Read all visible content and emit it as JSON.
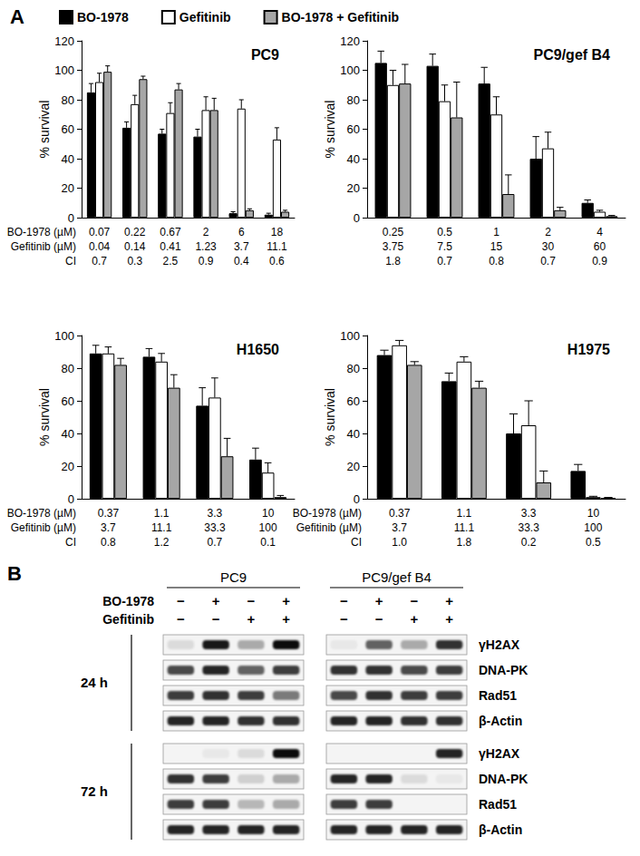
{
  "panel_a": {
    "label": "A"
  },
  "chart_data": [
    {
      "type": "bar",
      "title": "PC9",
      "y_label": "% survival",
      "ylim": [
        0,
        120
      ],
      "yticks": [
        0,
        20,
        40,
        60,
        80,
        100,
        120
      ],
      "grid": false,
      "legend": "top",
      "x_rows": [
        {
          "name": "BO-1978 (µM)",
          "values": [
            0.07,
            0.22,
            0.67,
            2,
            6,
            18
          ]
        },
        {
          "name": "Gefitinib (µM)",
          "values": [
            0.04,
            0.14,
            0.41,
            1.23,
            3.7,
            11.1
          ]
        },
        {
          "name": "CI",
          "values": [
            0.7,
            0.3,
            2.5,
            0.9,
            0.4,
            0.6
          ]
        }
      ],
      "series": [
        {
          "name": "BO-1978",
          "color": "#000000",
          "values": [
            85,
            61,
            57,
            55,
            3,
            2
          ],
          "errors": [
            6,
            4,
            3,
            5,
            1,
            1
          ]
        },
        {
          "name": "Gefitinib",
          "color": "#ffffff",
          "values": [
            92,
            77,
            71,
            73,
            74,
            53
          ],
          "errors": [
            6,
            6,
            7,
            9,
            6,
            8
          ]
        },
        {
          "name": "BO-1978 + Gefitinib",
          "color": "#a6a6a6",
          "values": [
            99,
            94,
            87,
            73,
            5,
            4
          ],
          "errors": [
            4,
            2,
            4,
            8,
            1,
            1
          ]
        }
      ]
    },
    {
      "type": "bar",
      "title": "PC9/gef B4",
      "y_label": "% survival",
      "ylim": [
        0,
        120
      ],
      "yticks": [
        0,
        20,
        40,
        60,
        80,
        100,
        120
      ],
      "grid": false,
      "x_rows": [
        {
          "values": [
            0.25,
            0.5,
            1,
            2,
            4
          ]
        },
        {
          "values": [
            3.75,
            7.5,
            15,
            30,
            60
          ]
        },
        {
          "values": [
            1.8,
            0.7,
            0.8,
            0.7,
            0.9
          ]
        }
      ],
      "series": [
        {
          "name": "BO-1978",
          "color": "#000000",
          "values": [
            105,
            103,
            91,
            40,
            10
          ],
          "errors": [
            8,
            8,
            11,
            15,
            2
          ]
        },
        {
          "name": "Gefitinib",
          "color": "#ffffff",
          "values": [
            90,
            79,
            70,
            47,
            4
          ],
          "errors": [
            10,
            11,
            12,
            11,
            1
          ]
        },
        {
          "name": "BO-1978 + Gefitinib",
          "color": "#a6a6a6",
          "values": [
            91,
            68,
            16,
            5,
            1
          ],
          "errors": [
            13,
            24,
            13,
            2,
            0.5
          ]
        }
      ]
    },
    {
      "type": "bar",
      "title": "H1650",
      "y_label": "% survival",
      "ylim": [
        0,
        100
      ],
      "yticks": [
        0,
        20,
        40,
        60,
        80,
        100
      ],
      "grid": false,
      "x_rows": [
        {
          "name": "BO-1978 (µM)",
          "values": [
            0.37,
            1.1,
            3.3,
            10
          ]
        },
        {
          "name": "Gefitinib (µM)",
          "values": [
            3.7,
            11.1,
            33.3,
            100
          ]
        },
        {
          "name": "CI",
          "values": [
            0.8,
            1.2,
            0.7,
            0.1
          ]
        }
      ],
      "series": [
        {
          "name": "BO-1978",
          "color": "#000000",
          "values": [
            89,
            87,
            57,
            24
          ],
          "errors": [
            5,
            5,
            11,
            7
          ]
        },
        {
          "name": "Gefitinib",
          "color": "#ffffff",
          "values": [
            89,
            84,
            62,
            16
          ],
          "errors": [
            4,
            5,
            12,
            6
          ]
        },
        {
          "name": "BO-1978 + Gefitinib",
          "color": "#a6a6a6",
          "values": [
            82,
            68,
            26,
            1
          ],
          "errors": [
            4,
            8,
            11,
            1
          ]
        }
      ]
    },
    {
      "type": "bar",
      "title": "H1975",
      "y_label": "% survival",
      "ylim": [
        0,
        100
      ],
      "yticks": [
        0,
        20,
        40,
        60,
        80,
        100
      ],
      "grid": false,
      "x_rows": [
        {
          "name": "BO-1978 (µM)",
          "values": [
            0.37,
            1.1,
            3.3,
            10
          ]
        },
        {
          "name": "Gefitinib (µM)",
          "values": [
            3.7,
            11.1,
            33.3,
            100
          ]
        },
        {
          "name": "CI",
          "values": [
            {
              "value": 1.0,
              "label": "1.0"
            },
            1.8,
            0.2,
            0.5
          ]
        }
      ],
      "series": [
        {
          "name": "BO-1978",
          "color": "#000000",
          "values": [
            88,
            72,
            40,
            17
          ],
          "errors": [
            3,
            5,
            12,
            4
          ]
        },
        {
          "name": "Gefitinib",
          "color": "#ffffff",
          "values": [
            94,
            84,
            45,
            1
          ],
          "errors": [
            3,
            3,
            15,
            0.5
          ]
        },
        {
          "name": "BO-1978 + Gefitinib",
          "color": "#a6a6a6",
          "values": [
            82,
            68,
            10,
            0.5
          ],
          "errors": [
            2,
            4,
            7,
            0.3
          ]
        }
      ]
    }
  ],
  "panel_b": {
    "label": "B",
    "cell_lines": [
      "PC9",
      "PC9/gef B4"
    ],
    "treatments": [
      {
        "name": "BO-1978",
        "signs": [
          "−",
          "+",
          "−",
          "+"
        ]
      },
      {
        "name": "Gefitinib",
        "signs": [
          "−",
          "−",
          "+",
          "+"
        ]
      }
    ],
    "timepoints": [
      {
        "label": "24 h",
        "blots": [
          {
            "name": "γH2AX",
            "intensities": [
              [
                0.1,
                0.9,
                0.3,
                0.95
              ],
              [
                0.05,
                0.6,
                0.3,
                0.8
              ]
            ]
          },
          {
            "name": "DNA-PK",
            "intensities": [
              [
                0.7,
                0.85,
                0.6,
                0.75
              ],
              [
                0.8,
                0.8,
                0.7,
                0.75
              ]
            ]
          },
          {
            "name": "Rad51",
            "intensities": [
              [
                0.75,
                0.8,
                0.75,
                0.5
              ],
              [
                0.7,
                0.8,
                0.75,
                0.75
              ]
            ]
          },
          {
            "name": "β-Actin",
            "intensities": [
              [
                0.85,
                0.85,
                0.8,
                0.8
              ],
              [
                0.85,
                0.85,
                0.8,
                0.8
              ]
            ]
          }
        ]
      },
      {
        "label": "72 h",
        "blots": [
          {
            "name": "γH2AX",
            "intensities": [
              [
                0,
                0.05,
                0.1,
                0.95
              ],
              [
                0,
                0,
                0,
                0.85
              ]
            ]
          },
          {
            "name": "DNA-PK",
            "intensities": [
              [
                0.8,
                0.75,
                0.15,
                0.3
              ],
              [
                0.85,
                0.85,
                0.1,
                0.05
              ]
            ]
          },
          {
            "name": "Rad51",
            "intensities": [
              [
                0.75,
                0.75,
                0.25,
                0.3
              ],
              [
                0.75,
                0.75,
                0,
                0
              ]
            ]
          },
          {
            "name": "β-Actin",
            "intensities": [
              [
                0.85,
                0.85,
                0.85,
                0.85
              ],
              [
                0.85,
                0.85,
                0.85,
                0.85
              ]
            ]
          }
        ]
      }
    ]
  }
}
